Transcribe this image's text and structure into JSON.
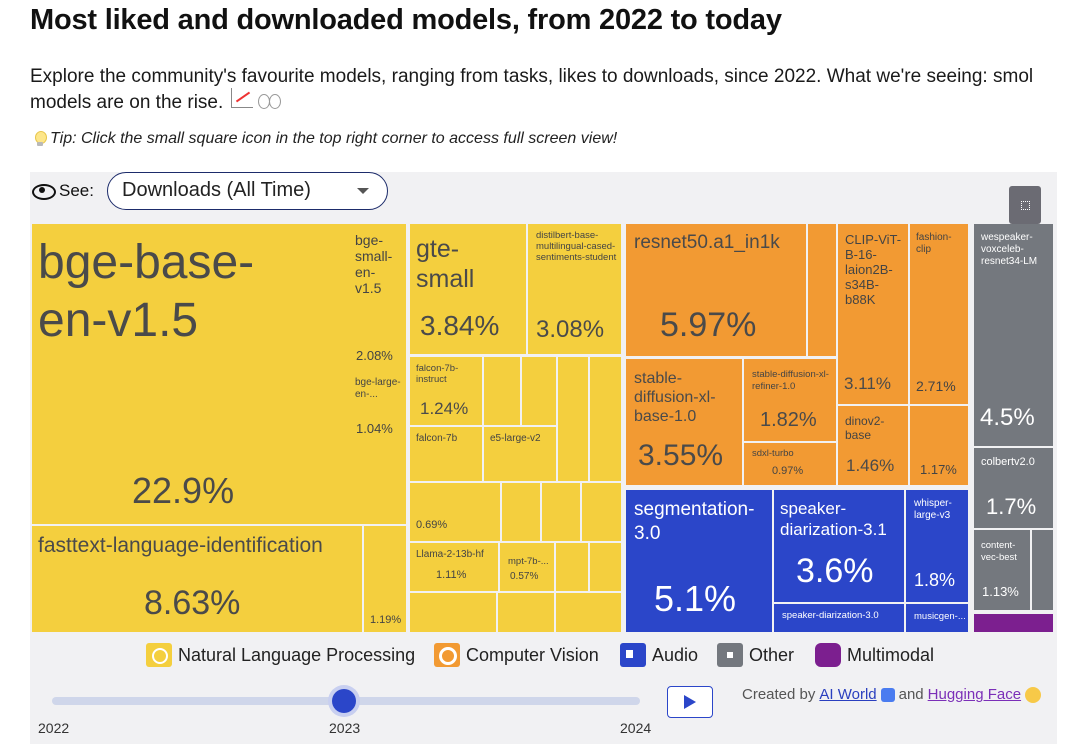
{
  "header": {
    "title": "Most liked and downloaded models, from 2022 to today",
    "intro": "Explore the community's favourite models, ranging from tasks, likes to downloads, since 2022. What we're seeing: smol models are on the rise.",
    "tip": "Tip: Click the small square icon in the top right corner to access full screen view!"
  },
  "controls": {
    "see_label": "See:",
    "metric_selected": "Downloads (All Time)"
  },
  "treemap": {
    "cells": [
      {
        "label": "bge-base-en-v1.5",
        "value": "22.9%",
        "category": "nlp"
      },
      {
        "label": "fasttext-language-identification",
        "value": "8.63%",
        "category": "nlp"
      },
      {
        "label": "",
        "value": "1.19%",
        "category": "nlp"
      },
      {
        "label": "bge-small-en-v1.5",
        "value": "2.08%",
        "category": "nlp"
      },
      {
        "label": "bge-large-en-...",
        "value": "1.04%",
        "category": "nlp"
      },
      {
        "label": "gte-small",
        "value": "3.84%",
        "category": "nlp"
      },
      {
        "label": "distilbert-base-multilingual-cased-sentiments-student",
        "value": "3.08%",
        "category": "nlp"
      },
      {
        "label": "falcon-7b-instruct",
        "value": "1.24%",
        "category": "nlp"
      },
      {
        "label": "falcon-7b",
        "value": "",
        "category": "nlp"
      },
      {
        "label": "e5-large-v2",
        "value": "",
        "category": "nlp"
      },
      {
        "label": "",
        "value": "0.69%",
        "category": "nlp"
      },
      {
        "label": "Llama-2-13b-hf",
        "value": "1.11%",
        "category": "nlp"
      },
      {
        "label": "mpt-7b-...",
        "value": "0.57%",
        "category": "nlp"
      },
      {
        "label": "resnet50.a1_in1k",
        "value": "5.97%",
        "category": "cv"
      },
      {
        "label": "stable-diffusion-xl-base-1.0",
        "value": "3.55%",
        "category": "cv"
      },
      {
        "label": "stable-diffusion-xl-refiner-1.0",
        "value": "1.82%",
        "category": "cv"
      },
      {
        "label": "sdxl-turbo",
        "value": "0.97%",
        "category": "cv"
      },
      {
        "label": "CLIP-ViT-B-16-laion2B-s34B-b88K",
        "value": "3.11%",
        "category": "cv"
      },
      {
        "label": "fashion-clip",
        "value": "2.71%",
        "category": "cv"
      },
      {
        "label": "dinov2-base",
        "value": "1.46%",
        "category": "cv"
      },
      {
        "label": "",
        "value": "1.17%",
        "category": "cv"
      },
      {
        "label": "segmentation-3.0",
        "value": "5.1%",
        "category": "audio"
      },
      {
        "label": "speaker-diarization-3.1",
        "value": "3.6%",
        "category": "audio"
      },
      {
        "label": "speaker-diarization-3.0",
        "value": "",
        "category": "audio"
      },
      {
        "label": "whisper-large-v3",
        "value": "1.8%",
        "category": "audio"
      },
      {
        "label": "musicgen-...",
        "value": "",
        "category": "audio"
      },
      {
        "label": "wespeaker-voxceleb-resnet34-LM",
        "value": "4.5%",
        "category": "other"
      },
      {
        "label": "colbertv2.0",
        "value": "1.7%",
        "category": "other"
      },
      {
        "label": "content-vec-best",
        "value": "1.13%",
        "category": "other"
      }
    ]
  },
  "legend": [
    {
      "label": "Natural Language Processing",
      "color": "#f4cf3e"
    },
    {
      "label": "Computer Vision",
      "color": "#f29a33"
    },
    {
      "label": "Audio",
      "color": "#2b46c9"
    },
    {
      "label": "Other",
      "color": "#74787e"
    },
    {
      "label": "Multimodal",
      "color": "#7c1f8f"
    }
  ],
  "timeline": {
    "years": [
      "2022",
      "2023",
      "2024"
    ],
    "current": "2023"
  },
  "credit": {
    "prefix": "Created by",
    "author1": "AI World",
    "joiner": "and",
    "author2": "Hugging Face"
  }
}
